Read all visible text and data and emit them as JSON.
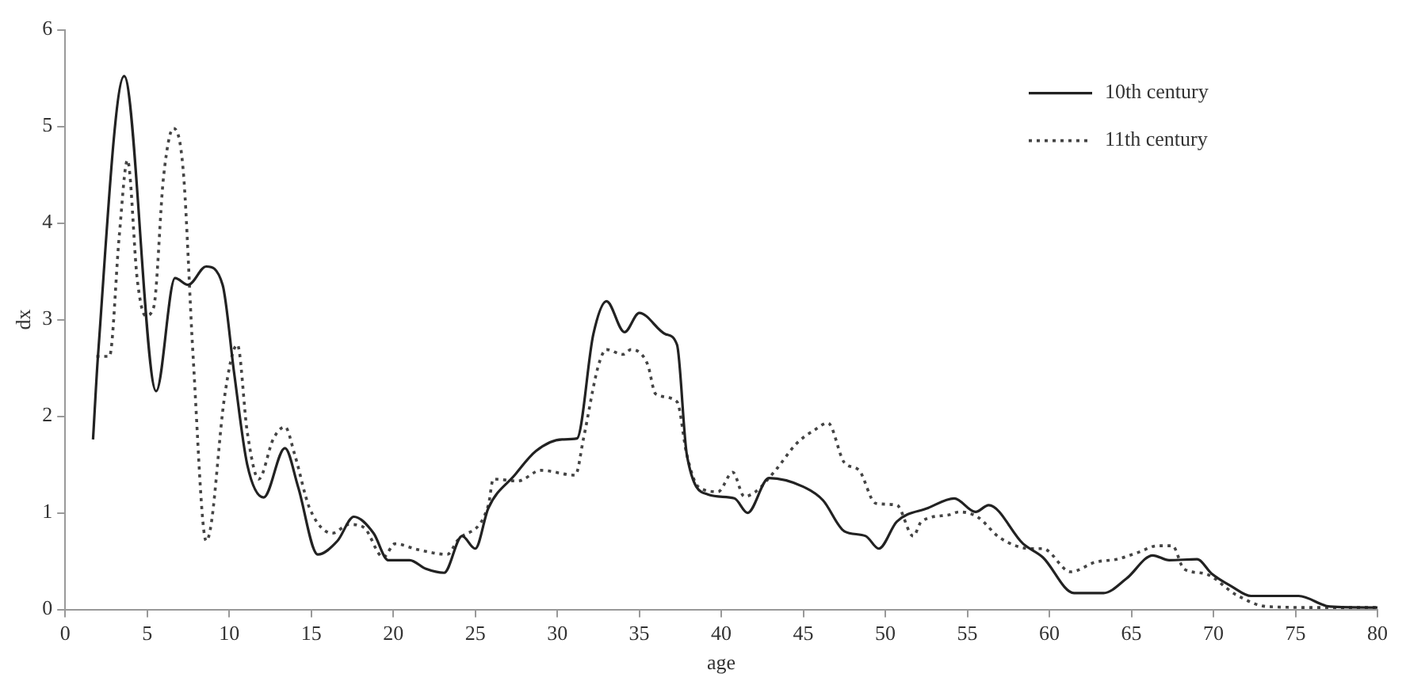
{
  "chart_data": {
    "type": "line",
    "xlabel": "age",
    "ylabel": "dx",
    "xlim": [
      0,
      80
    ],
    "xticks": [
      0,
      5,
      10,
      15,
      20,
      25,
      30,
      35,
      40,
      45,
      50,
      55,
      60,
      65,
      70,
      75,
      80
    ],
    "ylim": [
      0,
      6
    ],
    "yticks": [
      0,
      1,
      2,
      3,
      4,
      5,
      6
    ],
    "grid": false,
    "legend": "top right",
    "marker": "none",
    "series": [
      {
        "name": "10th century",
        "color": "#222222",
        "line_style": "solid",
        "x": [
          1.7,
          2.0,
          3.6,
          5.55,
          6.7,
          7.5,
          8.6,
          9.6,
          10.3,
          11.1,
          12.1,
          13.4,
          14.2,
          15.4,
          16.6,
          17.6,
          18.8,
          19.7,
          21.0,
          22.0,
          23.1,
          24.2,
          25.0,
          25.8,
          27.4,
          28.7,
          30.3,
          31.2,
          32.2,
          33.0,
          34.1,
          35.0,
          36.6,
          37.3,
          37.9,
          39.2,
          40.8,
          41.6,
          42.9,
          45.0,
          46.2,
          47.5,
          48.8,
          49.6,
          50.7,
          52.6,
          54.2,
          55.5,
          56.3,
          58.4,
          59.6,
          61.5,
          63.3,
          64.7,
          66.3,
          67.3,
          69.0,
          69.9,
          71.1,
          72.3,
          75.2,
          77.1,
          80
        ],
        "values": [
          1.76,
          2.62,
          5.52,
          2.26,
          3.43,
          3.36,
          3.55,
          3.36,
          2.45,
          1.5,
          1.16,
          1.67,
          1.27,
          0.57,
          0.71,
          0.96,
          0.79,
          0.51,
          0.51,
          0.42,
          0.38,
          0.76,
          0.63,
          1.05,
          1.39,
          1.64,
          1.76,
          1.77,
          2.85,
          3.19,
          2.87,
          3.07,
          2.85,
          2.74,
          1.6,
          1.19,
          1.15,
          1.0,
          1.36,
          1.27,
          1.13,
          0.81,
          0.76,
          0.63,
          0.91,
          1.05,
          1.15,
          1.01,
          1.08,
          0.68,
          0.54,
          0.17,
          0.17,
          0.32,
          0.56,
          0.51,
          0.52,
          0.37,
          0.24,
          0.14,
          0.14,
          0.03,
          0.02
        ]
      },
      {
        "name": "11th century",
        "color": "#444444",
        "line_style": "dotted",
        "x": [
          1.9,
          2.7,
          3.3,
          3.8,
          4.4,
          4.9,
          5.4,
          6.0,
          6.6,
          7.2,
          7.8,
          8.6,
          8.9,
          9.7,
          10.5,
          11.1,
          11.8,
          12.7,
          13.4,
          14.0,
          14.9,
          16.3,
          17.3,
          18.2,
          19.4,
          20.1,
          21.5,
          23.3,
          23.9,
          25.8,
          26.1,
          27.6,
          29.0,
          31.1,
          31.6,
          32.5,
          33.0,
          34.0,
          34.5,
          35.5,
          36.0,
          37.3,
          37.9,
          38.6,
          39.8,
          40.7,
          41.4,
          42.1,
          43.3,
          44.6,
          45.7,
          46.5,
          47.5,
          48.4,
          49.4,
          50.7,
          51.7,
          52.2,
          53.9,
          54.5,
          55.6,
          57.0,
          58.9,
          59.6,
          61.3,
          62.8,
          64.1,
          65.4,
          66.6,
          67.5,
          68.2,
          69.5,
          71.4,
          73.3,
          76.8,
          80
        ],
        "values": [
          2.62,
          2.62,
          3.87,
          4.65,
          3.41,
          3.04,
          3.13,
          4.48,
          4.98,
          4.54,
          2.62,
          0.71,
          0.88,
          2.18,
          2.74,
          1.84,
          1.35,
          1.77,
          1.89,
          1.6,
          1.05,
          0.79,
          0.88,
          0.85,
          0.54,
          0.68,
          0.62,
          0.57,
          0.71,
          1.08,
          1.35,
          1.33,
          1.44,
          1.39,
          1.77,
          2.52,
          2.69,
          2.64,
          2.69,
          2.54,
          2.23,
          2.15,
          1.6,
          1.27,
          1.22,
          1.42,
          1.17,
          1.22,
          1.44,
          1.72,
          1.86,
          1.93,
          1.52,
          1.44,
          1.1,
          1.08,
          0.76,
          0.91,
          0.98,
          1.01,
          0.96,
          0.74,
          0.63,
          0.63,
          0.39,
          0.49,
          0.52,
          0.59,
          0.66,
          0.66,
          0.42,
          0.37,
          0.15,
          0.03,
          0.02,
          0.02
        ]
      }
    ]
  }
}
